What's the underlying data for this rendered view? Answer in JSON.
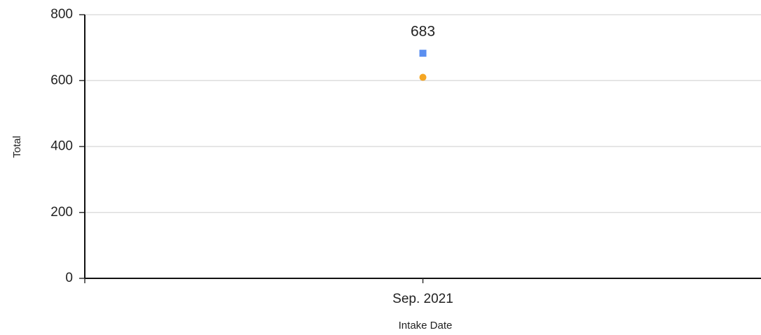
{
  "chart_data": {
    "type": "line",
    "categories": [
      "Sep. 2021"
    ],
    "series": [
      {
        "color": "#5b8ff0",
        "marker": "square",
        "values": [
          683
        ],
        "show_value_labels": true
      },
      {
        "color": "#f5a623",
        "marker": "circle",
        "values": [
          610
        ],
        "show_value_labels": false
      }
    ],
    "xlabel": "Intake Date",
    "ylabel": "Total",
    "ylim": [
      0,
      800
    ],
    "yticks": [
      0,
      200,
      400,
      600,
      800
    ],
    "grid": true
  }
}
